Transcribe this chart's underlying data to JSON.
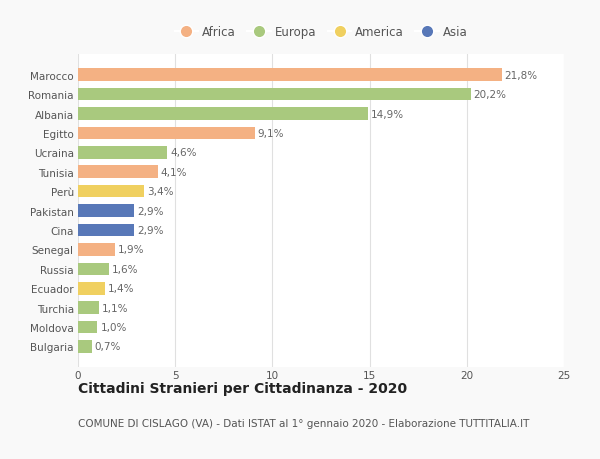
{
  "countries": [
    "Marocco",
    "Romania",
    "Albania",
    "Egitto",
    "Ucraina",
    "Tunisia",
    "Perù",
    "Pakistan",
    "Cina",
    "Senegal",
    "Russia",
    "Ecuador",
    "Turchia",
    "Moldova",
    "Bulgaria"
  ],
  "values": [
    21.8,
    20.2,
    14.9,
    9.1,
    4.6,
    4.1,
    3.4,
    2.9,
    2.9,
    1.9,
    1.6,
    1.4,
    1.1,
    1.0,
    0.7
  ],
  "labels": [
    "21,8%",
    "20,2%",
    "14,9%",
    "9,1%",
    "4,6%",
    "4,1%",
    "3,4%",
    "2,9%",
    "2,9%",
    "1,9%",
    "1,6%",
    "1,4%",
    "1,1%",
    "1,0%",
    "0,7%"
  ],
  "continents": [
    "Africa",
    "Europa",
    "Europa",
    "Africa",
    "Europa",
    "Africa",
    "America",
    "Asia",
    "Asia",
    "Africa",
    "Europa",
    "America",
    "Europa",
    "Europa",
    "Europa"
  ],
  "colors": {
    "Africa": "#F4B183",
    "Europa": "#A9C97E",
    "America": "#F0D060",
    "Asia": "#5878B8"
  },
  "legend_order": [
    "Africa",
    "Europa",
    "America",
    "Asia"
  ],
  "xlim": [
    0,
    25
  ],
  "title": "Cittadini Stranieri per Cittadinanza - 2020",
  "subtitle": "COMUNE DI CISLAGO (VA) - Dati ISTAT al 1° gennaio 2020 - Elaborazione TUTTITALIA.IT",
  "background_color": "#f9f9f9",
  "bar_background": "#ffffff",
  "label_fontsize": 7.5,
  "tick_fontsize": 7.5,
  "title_fontsize": 10,
  "subtitle_fontsize": 7.5
}
